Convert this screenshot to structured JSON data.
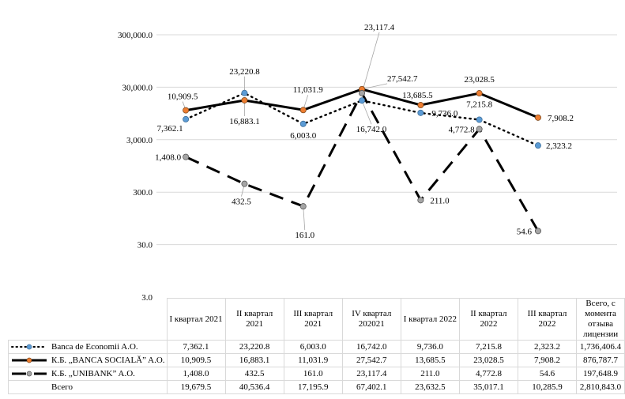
{
  "chart_data": {
    "type": "line",
    "yscale": "log",
    "ylim": [
      3,
      300000
    ],
    "yticks": [
      "300,000.0",
      "30,000.0",
      "3,000.0",
      "300.0",
      "30.0",
      "3.0"
    ],
    "ytick_values": [
      300000,
      30000,
      3000,
      300,
      30,
      3
    ],
    "grid": true,
    "categories": [
      "I квартал 2021",
      "II квартал 2021",
      "III квартал 2021",
      "IV квартал 202021",
      "I квартал 2022",
      "II квартал 2022",
      "III квартал 2022"
    ],
    "table_header": [
      "I квартал 2021",
      "II квартал 2021",
      "III квартал 2021",
      "IV квартал 202021",
      "I квартал 2022",
      "II квартал 2022",
      "III квартал 2022",
      "Всего, с момента отзыва лицензии"
    ],
    "series": [
      {
        "name": "Banca de Economii A.O.",
        "style": "dotted",
        "color": "#000000",
        "marker_color": "#5b9bd5",
        "values": [
          7362.1,
          23220.8,
          6003.0,
          16742.0,
          9736.0,
          7215.8,
          2323.2
        ],
        "labels": [
          "7,362.1",
          "23,220.8",
          "6,003.0",
          "16,742.0",
          "9,736.0",
          "7,215.8",
          "2,323.2"
        ],
        "total": "1,736,406.4"
      },
      {
        "name": "К.Б. „BANCA SOCIALĂ” A.O.",
        "style": "solid",
        "color": "#000000",
        "marker_color": "#ed7d31",
        "values": [
          10909.5,
          16883.1,
          11031.9,
          27542.7,
          13685.5,
          23028.5,
          7908.2
        ],
        "labels": [
          "10,909.5",
          "16,883.1",
          "11,031.9",
          "27,542.7",
          "13,685.5",
          "23,028.5",
          "7,908.2"
        ],
        "total": "876,787.7"
      },
      {
        "name": "К.Б. „UNIBANK” A.O.",
        "style": "dashed",
        "color": "#000000",
        "marker_color": "#a5a5a5",
        "values": [
          1408.0,
          432.5,
          161.0,
          23117.4,
          211.0,
          4772.8,
          54.6
        ],
        "labels": [
          "1,408.0",
          "432.5",
          "161.0",
          "23,117.4",
          "211.0",
          "4,772.8",
          "54.6"
        ],
        "total": "197,648.9"
      }
    ],
    "totals_row": {
      "name": "Всего",
      "values": [
        "19,679.5",
        "40,536.4",
        "17,195.9",
        "67,402.1",
        "23,632.5",
        "35,017.1",
        "10,285.9",
        "2,810,843.0"
      ]
    }
  }
}
